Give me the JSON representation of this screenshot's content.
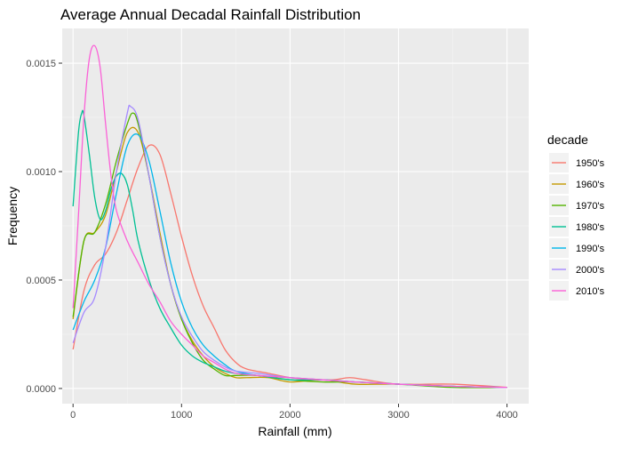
{
  "chart_data": {
    "type": "line",
    "title": "Average Annual Decadal Rainfall Distribution",
    "xlabel": "Rainfall (mm)",
    "ylabel": "Frequency",
    "xlim": [
      -100,
      4200
    ],
    "ylim": [
      -7e-05,
      0.00166
    ],
    "x_ticks": [
      0,
      1000,
      2000,
      3000,
      4000
    ],
    "x_tick_labels": [
      "0",
      "1000",
      "2000",
      "3000",
      "4000"
    ],
    "y_ticks": [
      0,
      0.0005,
      0.001,
      0.0015
    ],
    "y_tick_labels": [
      "0.0000",
      "0.0005",
      "0.0010",
      "0.0015"
    ],
    "grid": true,
    "legend": {
      "title": "decade",
      "placement": "right"
    },
    "series": [
      {
        "name": "1950's",
        "color": "#F8766D",
        "x": [
          0,
          100,
          200,
          300,
          400,
          500,
          600,
          700,
          800,
          900,
          1000,
          1100,
          1200,
          1300,
          1400,
          1500,
          1600,
          1800,
          2000,
          2200,
          2400,
          2550,
          2700,
          3000,
          3500,
          4000
        ],
        "y": [
          0.00018,
          0.00045,
          0.00057,
          0.00062,
          0.00072,
          0.00087,
          0.00102,
          0.00112,
          0.00108,
          0.0009,
          0.0007,
          0.00052,
          0.00038,
          0.00028,
          0.00018,
          0.00012,
          9e-05,
          7e-05,
          5e-05,
          4e-05,
          4e-05,
          5e-05,
          4e-05,
          2e-05,
          2e-05,
          5e-06
        ]
      },
      {
        "name": "1960's",
        "color": "#C49A00",
        "x": [
          0,
          100,
          200,
          300,
          400,
          500,
          600,
          700,
          800,
          900,
          1000,
          1100,
          1200,
          1300,
          1400,
          1500,
          1600,
          1800,
          2000,
          2300,
          2600,
          3000,
          3500,
          4000
        ],
        "y": [
          0.00032,
          0.00068,
          0.00072,
          0.0008,
          0.001,
          0.00118,
          0.00118,
          0.00098,
          0.00072,
          0.00048,
          0.00032,
          0.00022,
          0.00015,
          0.0001,
          7e-05,
          5e-05,
          5e-05,
          5e-05,
          3e-05,
          4e-05,
          2e-05,
          2e-05,
          1e-05,
          5e-06
        ]
      },
      {
        "name": "1970's",
        "color": "#53B400",
        "x": [
          0,
          100,
          200,
          300,
          400,
          500,
          550,
          600,
          700,
          800,
          900,
          1000,
          1100,
          1200,
          1300,
          1400,
          1500,
          1700,
          2000,
          2300,
          2600,
          3000,
          3500,
          4000
        ],
        "y": [
          0.00033,
          0.00068,
          0.00072,
          0.00085,
          0.00105,
          0.00122,
          0.00127,
          0.00122,
          0.00098,
          0.0007,
          0.00048,
          0.00032,
          0.00021,
          0.00013,
          9e-05,
          6e-05,
          6e-05,
          6e-05,
          4e-05,
          3e-05,
          3e-05,
          2e-05,
          5e-06,
          5e-06
        ]
      },
      {
        "name": "1980's",
        "color": "#00C094",
        "x": [
          0,
          50,
          80,
          100,
          150,
          200,
          250,
          300,
          350,
          400,
          450,
          500,
          550,
          600,
          700,
          800,
          900,
          1000,
          1100,
          1200,
          1300,
          1400,
          1500,
          1700,
          2000,
          2300,
          2600,
          3000,
          3500,
          4000
        ],
        "y": [
          0.00084,
          0.00118,
          0.00127,
          0.00126,
          0.00108,
          0.00088,
          0.00078,
          0.00082,
          0.00092,
          0.00098,
          0.00099,
          0.00094,
          0.00082,
          0.00068,
          0.0005,
          0.00037,
          0.00028,
          0.0002,
          0.00015,
          0.00012,
          0.0001,
          8e-05,
          7e-05,
          6e-05,
          4e-05,
          4e-05,
          3e-05,
          2e-05,
          1e-05,
          5e-06
        ]
      },
      {
        "name": "1990's",
        "color": "#00B6EB",
        "x": [
          0,
          100,
          200,
          300,
          400,
          500,
          600,
          700,
          800,
          900,
          1000,
          1100,
          1200,
          1300,
          1400,
          1500,
          1700,
          2000,
          2300,
          2600,
          3000,
          3500,
          4000
        ],
        "y": [
          0.00027,
          0.0004,
          0.0005,
          0.00065,
          0.0009,
          0.00112,
          0.00117,
          0.00105,
          0.00082,
          0.00058,
          0.0004,
          0.00028,
          0.0002,
          0.00015,
          0.00011,
          8e-05,
          6e-05,
          5e-05,
          4e-05,
          3e-05,
          2e-05,
          1e-05,
          5e-06
        ]
      },
      {
        "name": "2000's",
        "color": "#A58AFF",
        "x": [
          0,
          100,
          200,
          300,
          400,
          500,
          530,
          600,
          700,
          800,
          900,
          1000,
          1100,
          1200,
          1300,
          1400,
          1500,
          1700,
          2000,
          2300,
          2600,
          3000,
          3500,
          4000
        ],
        "y": [
          0.00021,
          0.00035,
          0.00042,
          0.00065,
          0.001,
          0.00127,
          0.0013,
          0.00124,
          0.00098,
          0.0007,
          0.00048,
          0.00033,
          0.00024,
          0.00017,
          0.00013,
          0.0001,
          8e-05,
          7e-05,
          5e-05,
          4e-05,
          3e-05,
          2e-05,
          1e-05,
          5e-06
        ]
      },
      {
        "name": "2010's",
        "color": "#FB61D7",
        "x": [
          0,
          50,
          100,
          150,
          200,
          250,
          300,
          350,
          400,
          500,
          600,
          700,
          800,
          900,
          1000,
          1100,
          1200,
          1300,
          1400,
          1500,
          1700,
          2000,
          2300,
          2600,
          3000,
          3500,
          4000
        ],
        "y": [
          0.00037,
          0.0008,
          0.00125,
          0.00152,
          0.00158,
          0.00148,
          0.00122,
          0.00098,
          0.00082,
          0.00068,
          0.00058,
          0.00048,
          0.0004,
          0.00031,
          0.00025,
          0.0002,
          0.00015,
          0.00012,
          9e-05,
          7e-05,
          6e-05,
          5e-05,
          4e-05,
          3e-05,
          2e-05,
          1e-05,
          5e-06
        ]
      }
    ]
  }
}
